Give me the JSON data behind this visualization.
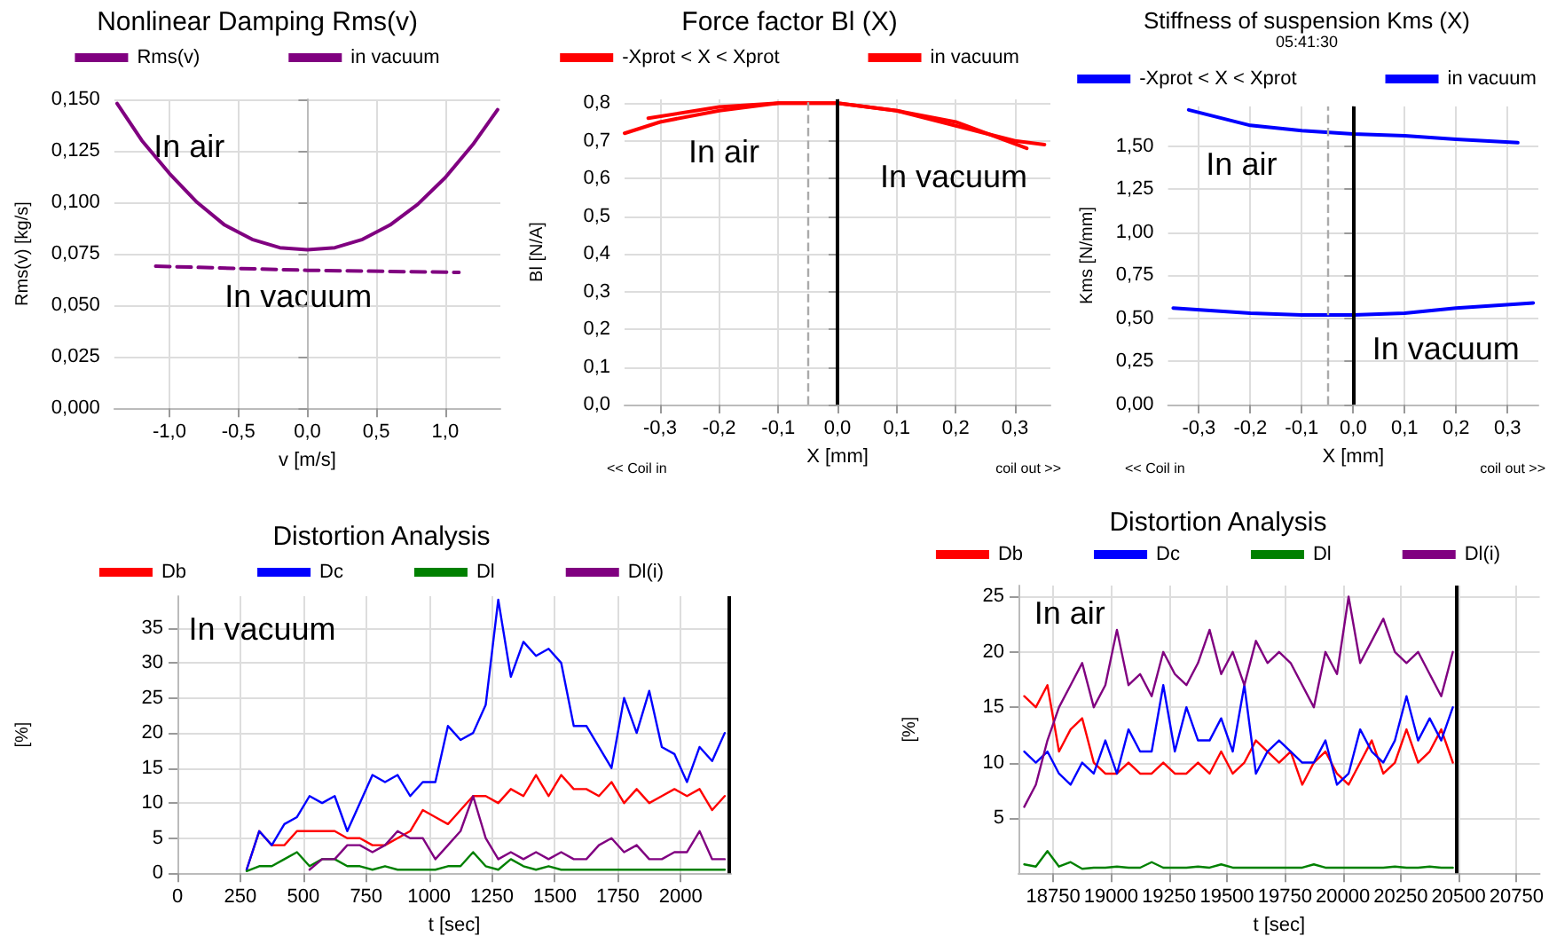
{
  "chart_data": [
    {
      "type": "line",
      "title": "Nonlinear Damping Rms(v)",
      "xlabel": "v [m/s]",
      "ylabel": "Rms(v) [kg/s]",
      "xlim": [
        -1.4,
        1.4
      ],
      "ylim": [
        0,
        0.15
      ],
      "xticks": [
        {
          "value": -1,
          "label": "-1,0"
        },
        {
          "value": -0.5,
          "label": "-0,5"
        },
        {
          "value": 0,
          "label": "0,0"
        },
        {
          "value": 0.5,
          "label": "0,5"
        },
        {
          "value": 1,
          "label": "1,0"
        }
      ],
      "yticks": [
        {
          "value": 0,
          "label": "0,000"
        },
        {
          "value": 0.025,
          "label": "0,025"
        },
        {
          "value": 0.05,
          "label": "0,050"
        },
        {
          "value": 0.075,
          "label": "0,075"
        },
        {
          "value": 0.1,
          "label": "0,100"
        },
        {
          "value": 0.125,
          "label": "0,125"
        },
        {
          "value": 0.15,
          "label": "0,150"
        }
      ],
      "series": [
        {
          "name": "Rms(v)",
          "color": "#800080",
          "x": [
            -1.38,
            -1.2,
            -1.0,
            -0.8,
            -0.6,
            -0.4,
            -0.2,
            0,
            0.2,
            0.4,
            0.6,
            0.8,
            1.0,
            1.2,
            1.38
          ],
          "values": [
            0.148,
            0.13,
            0.114,
            0.1,
            0.089,
            0.082,
            0.078,
            0.077,
            0.078,
            0.082,
            0.089,
            0.099,
            0.112,
            0.128,
            0.145
          ]
        },
        {
          "name": "in vacuum",
          "color": "#800080",
          "line_style": "dashed",
          "x": [
            -1.1,
            0,
            1.1
          ],
          "values": [
            0.069,
            0.067,
            0.066
          ]
        }
      ],
      "annotations": [
        "In air",
        "In vacuum"
      ],
      "grid": true,
      "legend": "top",
      "marker": "none"
    },
    {
      "type": "line",
      "title": "Force factor Bl (X)",
      "xlabel": "X [mm]",
      "ylabel": "Bl [N/A]",
      "xlim": [
        -0.36,
        0.36
      ],
      "ylim": [
        0,
        0.81
      ],
      "xticks": [
        {
          "value": -0.3,
          "label": "-0,3"
        },
        {
          "value": -0.2,
          "label": "-0,2"
        },
        {
          "value": -0.1,
          "label": "-0,1"
        },
        {
          "value": 0,
          "label": "0,0"
        },
        {
          "value": 0.1,
          "label": "0,1"
        },
        {
          "value": 0.2,
          "label": "0,2"
        },
        {
          "value": 0.3,
          "label": "0,3"
        }
      ],
      "yticks": [
        {
          "value": 0,
          "label": "0,0"
        },
        {
          "value": 0.1,
          "label": "0,1"
        },
        {
          "value": 0.2,
          "label": "0,2"
        },
        {
          "value": 0.3,
          "label": "0,3"
        },
        {
          "value": 0.4,
          "label": "0,4"
        },
        {
          "value": 0.5,
          "label": "0,5"
        },
        {
          "value": 0.6,
          "label": "0,6"
        },
        {
          "value": 0.7,
          "label": "0,7"
        },
        {
          "value": 0.8,
          "label": "0,8"
        }
      ],
      "series": [
        {
          "name": "-Xprot < X < Xprot",
          "color": "#ff0000",
          "x": [
            -0.36,
            -0.3,
            -0.2,
            -0.1,
            -0.05,
            0,
            0.1,
            0.2,
            0.3,
            0.35
          ],
          "values": [
            0.72,
            0.75,
            0.78,
            0.8,
            0.8,
            0.8,
            0.78,
            0.74,
            0.7,
            0.69
          ]
        },
        {
          "name": "in vacuum",
          "color": "#ff0000",
          "x": [
            -0.32,
            -0.2,
            -0.1,
            0,
            0.1,
            0.2,
            0.32
          ],
          "values": [
            0.76,
            0.79,
            0.8,
            0.8,
            0.78,
            0.75,
            0.68
          ]
        }
      ],
      "ref_lines": [
        {
          "axis": "x",
          "value": 0,
          "color": "#000000"
        },
        {
          "axis": "x",
          "value": -0.05,
          "color": "#aaaaaa",
          "line_style": "dashed"
        }
      ],
      "annotations": [
        "In air",
        "In vacuum",
        "<< Coil in",
        "coil out >>"
      ],
      "grid": true,
      "legend": "top",
      "marker": "none"
    },
    {
      "type": "line",
      "title": "Stiffness of suspension Kms (X)",
      "subtitle": "05:41:30",
      "xlabel": "X [mm]",
      "ylabel": "Kms [N/mm]",
      "xlim": [
        -0.36,
        0.36
      ],
      "ylim": [
        0,
        1.73
      ],
      "xticks": [
        {
          "value": -0.3,
          "label": "-0,3"
        },
        {
          "value": -0.2,
          "label": "-0,2"
        },
        {
          "value": -0.1,
          "label": "-0,1"
        },
        {
          "value": 0,
          "label": "0,0"
        },
        {
          "value": 0.1,
          "label": "0,1"
        },
        {
          "value": 0.2,
          "label": "0,2"
        },
        {
          "value": 0.3,
          "label": "0,3"
        }
      ],
      "yticks": [
        {
          "value": 0,
          "label": "0,00"
        },
        {
          "value": 0.25,
          "label": "0,25"
        },
        {
          "value": 0.5,
          "label": "0,50"
        },
        {
          "value": 0.75,
          "label": "0,75"
        },
        {
          "value": 1,
          "label": "1,00"
        },
        {
          "value": 1.25,
          "label": "1,25"
        },
        {
          "value": 1.5,
          "label": "1,50"
        }
      ],
      "series": [
        {
          "name": "-Xprot < X < Xprot",
          "color": "#0000ff",
          "x": [
            -0.32,
            -0.2,
            -0.1,
            0,
            0.1,
            0.2,
            0.32
          ],
          "values": [
            1.71,
            1.62,
            1.59,
            1.57,
            1.56,
            1.54,
            1.52
          ]
        },
        {
          "name": "in vacuum",
          "color": "#0000ff",
          "x": [
            -0.35,
            -0.2,
            -0.1,
            0,
            0.1,
            0.2,
            0.35
          ],
          "values": [
            0.56,
            0.53,
            0.52,
            0.52,
            0.53,
            0.56,
            0.59
          ]
        }
      ],
      "ref_lines": [
        {
          "axis": "x",
          "value": 0,
          "color": "#000000"
        },
        {
          "axis": "x",
          "value": -0.05,
          "color": "#aaaaaa",
          "line_style": "dashed"
        }
      ],
      "annotations": [
        "In air",
        "In vacuum",
        "<< Coil in",
        "coil out >>"
      ],
      "grid": true,
      "legend": "top",
      "marker": "none"
    },
    {
      "type": "line",
      "title": "Distortion Analysis",
      "xlabel": "t [sec]",
      "ylabel": "[%]",
      "xlim": [
        0,
        2200
      ],
      "ylim": [
        0,
        39.5
      ],
      "xticks": [
        0,
        250,
        500,
        750,
        1000,
        1250,
        1500,
        1750,
        2000
      ],
      "yticks": [
        0,
        5,
        10,
        15,
        20,
        25,
        30,
        35
      ],
      "x": [
        275,
        325,
        375,
        425,
        475,
        525,
        575,
        625,
        675,
        725,
        775,
        825,
        875,
        925,
        975,
        1025,
        1075,
        1125,
        1175,
        1225,
        1275,
        1325,
        1375,
        1425,
        1475,
        1525,
        1575,
        1625,
        1675,
        1725,
        1775,
        1825,
        1875,
        1925,
        1975,
        2025,
        2075,
        2125,
        2175
      ],
      "series": [
        {
          "name": "Db",
          "color": "#ff0000",
          "values": [
            0.5,
            6,
            4,
            4,
            6,
            6,
            6,
            6,
            5,
            5,
            4,
            4,
            5,
            6,
            9,
            8,
            7,
            9,
            11,
            11,
            10,
            12,
            11,
            14,
            11,
            14,
            12,
            12,
            11,
            13,
            10,
            12,
            10,
            11,
            12,
            11,
            12,
            9,
            11
          ]
        },
        {
          "name": "Dc",
          "color": "#0000ff",
          "values": [
            0.5,
            6,
            4,
            7,
            8,
            11,
            10,
            11,
            6,
            10,
            14,
            13,
            14,
            11,
            13,
            13,
            21,
            19,
            20,
            24,
            39,
            28,
            33,
            31,
            32,
            30,
            21,
            21,
            18,
            15,
            25,
            20,
            26,
            18,
            17,
            13,
            18,
            16,
            20
          ]
        },
        {
          "name": "Dl",
          "color": "#008000",
          "values": [
            0.3,
            1,
            1,
            2,
            3,
            1,
            2,
            2,
            1,
            1,
            0.5,
            1,
            0.5,
            0.5,
            0.5,
            0.5,
            1,
            1,
            3,
            1,
            0.5,
            2,
            1,
            0.5,
            1,
            0.5,
            0.5,
            0.5,
            0.5,
            0.5,
            0.5,
            0.5,
            0.5,
            0.5,
            0.5,
            0.5,
            0.5,
            0.5,
            0.5
          ]
        },
        {
          "name": "Dl(i)",
          "color": "#800080",
          "values": [
            null,
            null,
            null,
            null,
            null,
            0.5,
            2,
            2,
            4,
            4,
            3,
            4,
            6,
            5,
            5,
            2,
            4,
            6,
            11,
            5,
            2,
            3,
            2,
            3,
            2,
            3,
            2,
            2,
            4,
            5,
            3,
            4,
            2,
            2,
            3,
            3,
            6,
            2,
            2
          ]
        }
      ],
      "ref_lines": [
        {
          "axis": "x",
          "value": 2190,
          "color": "#000000"
        }
      ],
      "annotations": [
        "In vacuum"
      ],
      "grid": true,
      "legend": "top",
      "marker": "none"
    },
    {
      "type": "line",
      "title": "Distortion Analysis",
      "xlabel": "t [sec]",
      "ylabel": "[%]",
      "xlim": [
        18600,
        20850
      ],
      "ylim": [
        0,
        26
      ],
      "xticks": [
        18750,
        19000,
        19250,
        19500,
        19750,
        20000,
        20250,
        20500,
        20750
      ],
      "yticks": [
        5,
        10,
        15,
        20,
        25
      ],
      "x": [
        18625,
        18675,
        18725,
        18775,
        18825,
        18875,
        18925,
        18975,
        19025,
        19075,
        19125,
        19175,
        19225,
        19275,
        19325,
        19375,
        19425,
        19475,
        19525,
        19575,
        19625,
        19675,
        19725,
        19775,
        19825,
        19875,
        19925,
        19975,
        20025,
        20075,
        20125,
        20175,
        20225,
        20275,
        20325,
        20375,
        20425,
        20475
      ],
      "series": [
        {
          "name": "Db",
          "color": "#ff0000",
          "values": [
            16,
            15,
            17,
            11,
            13,
            14,
            10,
            9,
            9,
            10,
            9,
            9,
            10,
            9,
            9,
            10,
            9,
            11,
            9,
            10,
            12,
            11,
            10,
            11,
            8,
            10,
            11,
            9,
            8,
            10,
            12,
            9,
            10,
            13,
            10,
            11,
            13,
            10
          ]
        },
        {
          "name": "Dc",
          "color": "#0000ff",
          "values": [
            11,
            10,
            11,
            9,
            8,
            10,
            9,
            12,
            9,
            13,
            11,
            11,
            17,
            11,
            15,
            12,
            12,
            14,
            11,
            17,
            9,
            11,
            12,
            11,
            10,
            10,
            12,
            8,
            9,
            13,
            11,
            10,
            12,
            16,
            12,
            14,
            12,
            15
          ]
        },
        {
          "name": "Dl",
          "color": "#008000",
          "values": [
            0.8,
            0.6,
            2,
            0.6,
            1,
            0.4,
            0.5,
            0.5,
            0.6,
            0.5,
            0.5,
            1,
            0.5,
            0.5,
            0.5,
            0.6,
            0.5,
            0.8,
            0.5,
            0.5,
            0.5,
            0.5,
            0.5,
            0.5,
            0.5,
            0.8,
            0.5,
            0.5,
            0.5,
            0.5,
            0.5,
            0.5,
            0.6,
            0.5,
            0.5,
            0.6,
            0.5,
            0.5
          ]
        },
        {
          "name": "Dl(i)",
          "color": "#800080",
          "values": [
            6,
            8,
            12,
            15,
            17,
            19,
            15,
            17,
            22,
            17,
            18,
            16,
            20,
            18,
            17,
            19,
            22,
            18,
            20,
            17,
            21,
            19,
            20,
            19,
            17,
            15,
            20,
            18,
            25,
            19,
            21,
            23,
            20,
            19,
            20,
            18,
            16,
            20
          ]
        }
      ],
      "ref_lines": [
        {
          "axis": "x",
          "value": 20490,
          "color": "#000000"
        }
      ],
      "annotations": [
        "In air"
      ],
      "grid": true,
      "legend": "top",
      "marker": "none"
    }
  ]
}
